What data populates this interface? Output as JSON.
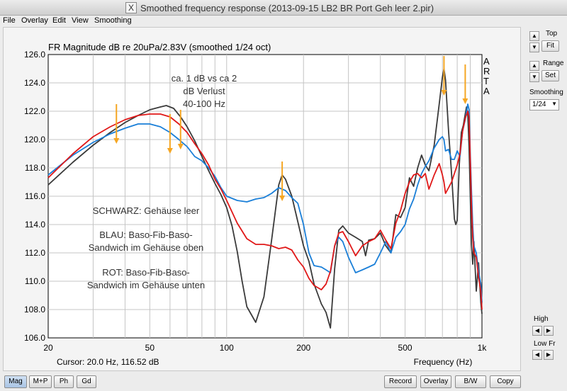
{
  "window": {
    "title": "Smoothed frequency response (2013-09-15 LB2 BR Port Geh leer 2.pir)"
  },
  "menu": [
    "File",
    "Overlay",
    "Edit",
    "View",
    "Smoothing"
  ],
  "chart_data": {
    "type": "line",
    "title": "FR Magnitude dB re 20uPa/2.83V (smoothed 1/24 oct)",
    "xlabel": "Frequency (Hz)",
    "xscale": "log",
    "xlim": [
      20,
      1000
    ],
    "ylim": [
      106,
      126
    ],
    "x_ticks": [
      "20",
      "50",
      "100",
      "200",
      "500",
      "1k"
    ],
    "y_ticks": [
      "106.0",
      "108.0",
      "110.0",
      "112.0",
      "114.0",
      "116.0",
      "118.0",
      "120.0",
      "122.0",
      "124.0",
      "126.0"
    ],
    "brand": [
      "A",
      "R",
      "T",
      "A"
    ],
    "cursor": "Cursor: 20.0 Hz, 116.52 dB",
    "annotations": [
      "ca. 1 dB vs ca 2",
      "dB Verlust",
      "40-100 Hz",
      "SCHWARZ: Gehäuse leer",
      "BLAU: Baso-Fib-Baso-",
      "Sandwich im Gehäuse oben",
      "ROT: Baso-Fib-Baso-",
      "Sandwich im Gehäuse unten"
    ],
    "arrows_hz": [
      37,
      60,
      66,
      165,
      710,
      860
    ],
    "series": [
      {
        "color": "#3a3a3a",
        "x": [
          20,
          25,
          30,
          35,
          40,
          45,
          50,
          55,
          58,
          62,
          66,
          70,
          75,
          80,
          85,
          90,
          95,
          100,
          105,
          110,
          115,
          120,
          130,
          140,
          150,
          160,
          165,
          170,
          180,
          190,
          200,
          210,
          220,
          235,
          245,
          255,
          265,
          275,
          285,
          300,
          320,
          340,
          350,
          360,
          380,
          400,
          420,
          440,
          460,
          480,
          500,
          520,
          540,
          560,
          580,
          600,
          620,
          650,
          680,
          700,
          710,
          720,
          740,
          760,
          770,
          780,
          790,
          800,
          815,
          830,
          845,
          860,
          870,
          880,
          890,
          900,
          910,
          920,
          930,
          950,
          970,
          990,
          1000
        ],
        "y": [
          116.8,
          118.4,
          119.6,
          120.5,
          121.2,
          121.7,
          122.1,
          122.3,
          122.4,
          122.2,
          121.6,
          120.9,
          119.9,
          118.8,
          117.8,
          116.9,
          116.1,
          115.2,
          113.9,
          112.1,
          110.0,
          108.2,
          107.1,
          108.9,
          112.9,
          116.8,
          117.5,
          117.2,
          116.0,
          114.2,
          112.5,
          111.4,
          109.8,
          108.4,
          107.8,
          106.7,
          110.9,
          113.6,
          113.9,
          113.4,
          113.1,
          112.8,
          111.8,
          112.9,
          113.0,
          113.4,
          112.5,
          112.0,
          114.7,
          114.5,
          115.2,
          117.3,
          116.7,
          118.0,
          118.9,
          118.2,
          117.8,
          119.6,
          122.5,
          124.4,
          125.0,
          124.2,
          120.6,
          117.6,
          116.0,
          114.4,
          114.0,
          114.3,
          118.2,
          120.5,
          121.0,
          121.8,
          122.3,
          121.8,
          119.5,
          116.1,
          112.6,
          111.2,
          112.8,
          109.3,
          111.3,
          108.5,
          107.7
        ]
      },
      {
        "color": "#1a7fd8",
        "x": [
          20,
          25,
          30,
          35,
          40,
          45,
          50,
          55,
          60,
          65,
          70,
          75,
          80,
          85,
          90,
          95,
          100,
          110,
          120,
          130,
          140,
          150,
          160,
          170,
          180,
          190,
          200,
          210,
          220,
          235,
          245,
          255,
          265,
          275,
          285,
          300,
          320,
          340,
          360,
          380,
          400,
          420,
          440,
          460,
          480,
          500,
          520,
          540,
          560,
          580,
          600,
          620,
          650,
          680,
          700,
          710,
          720,
          740,
          760,
          780,
          800,
          820,
          840,
          860,
          880,
          890,
          900,
          910,
          920,
          930,
          950,
          970,
          990,
          1000
        ],
        "y": [
          117.5,
          118.9,
          119.8,
          120.4,
          120.8,
          121.1,
          121.1,
          120.9,
          120.5,
          120.0,
          119.5,
          118.8,
          118.5,
          118.0,
          117.4,
          116.6,
          116.0,
          115.7,
          115.6,
          115.8,
          115.9,
          116.2,
          116.6,
          116.4,
          115.9,
          115.5,
          114.0,
          112.0,
          111.1,
          111.0,
          110.8,
          110.6,
          112.5,
          113.1,
          112.8,
          111.7,
          110.6,
          110.8,
          111.0,
          111.2,
          112.0,
          112.8,
          112.0,
          113.1,
          113.5,
          114.0,
          115.1,
          115.8,
          116.8,
          117.6,
          118.1,
          118.5,
          119.4,
          120.0,
          120.2,
          120.0,
          119.2,
          119.3,
          118.6,
          118.6,
          119.2,
          118.8,
          120.6,
          121.4,
          122.5,
          122.1,
          119.0,
          116.4,
          113.9,
          112.5,
          112.0,
          110.7,
          109.8,
          108.5
        ]
      },
      {
        "color": "#e01818",
        "x": [
          20,
          25,
          30,
          35,
          40,
          45,
          50,
          55,
          60,
          65,
          70,
          75,
          80,
          85,
          90,
          95,
          100,
          110,
          120,
          130,
          140,
          150,
          160,
          170,
          180,
          190,
          200,
          210,
          220,
          235,
          245,
          255,
          265,
          275,
          285,
          300,
          320,
          340,
          360,
          380,
          400,
          420,
          440,
          460,
          480,
          500,
          520,
          540,
          560,
          580,
          600,
          620,
          650,
          680,
          700,
          710,
          720,
          740,
          760,
          780,
          800,
          820,
          840,
          860,
          880,
          890,
          900,
          910,
          920,
          930,
          950,
          970,
          990,
          1000
        ],
        "y": [
          117.3,
          119.0,
          120.2,
          120.9,
          121.4,
          121.7,
          121.8,
          121.8,
          121.6,
          121.1,
          120.5,
          119.7,
          119.0,
          118.2,
          117.2,
          116.5,
          115.7,
          114.1,
          113.0,
          112.6,
          112.6,
          112.5,
          112.3,
          112.4,
          112.2,
          111.5,
          111.0,
          110.2,
          109.7,
          109.4,
          109.8,
          110.7,
          112.5,
          113.4,
          113.5,
          112.8,
          111.8,
          112.5,
          112.8,
          113.0,
          113.6,
          112.9,
          112.3,
          114.1,
          115.0,
          116.2,
          117.0,
          117.5,
          117.6,
          117.3,
          117.6,
          116.5,
          117.5,
          118.3,
          117.5,
          117.0,
          116.2,
          116.6,
          117.0,
          117.6,
          118.2,
          119.0,
          120.6,
          121.5,
          122.0,
          121.6,
          118.6,
          115.3,
          113.1,
          112.0,
          111.7,
          110.3,
          109.3,
          108.0
        ]
      }
    ]
  },
  "sidebar": {
    "top_label": "Top",
    "fit_label": "Fit",
    "range_label": "Range",
    "set_label": "Set",
    "smoothing_label": "Smoothing",
    "smoothing_value": "1/24",
    "high_label": "High",
    "lowfr_label": "Low Fr"
  },
  "bottom": {
    "mode_buttons": [
      "Mag",
      "M+P",
      "Ph",
      "Gd"
    ],
    "action_buttons": [
      "Record",
      "Overlay",
      "B/W",
      "Copy"
    ]
  }
}
